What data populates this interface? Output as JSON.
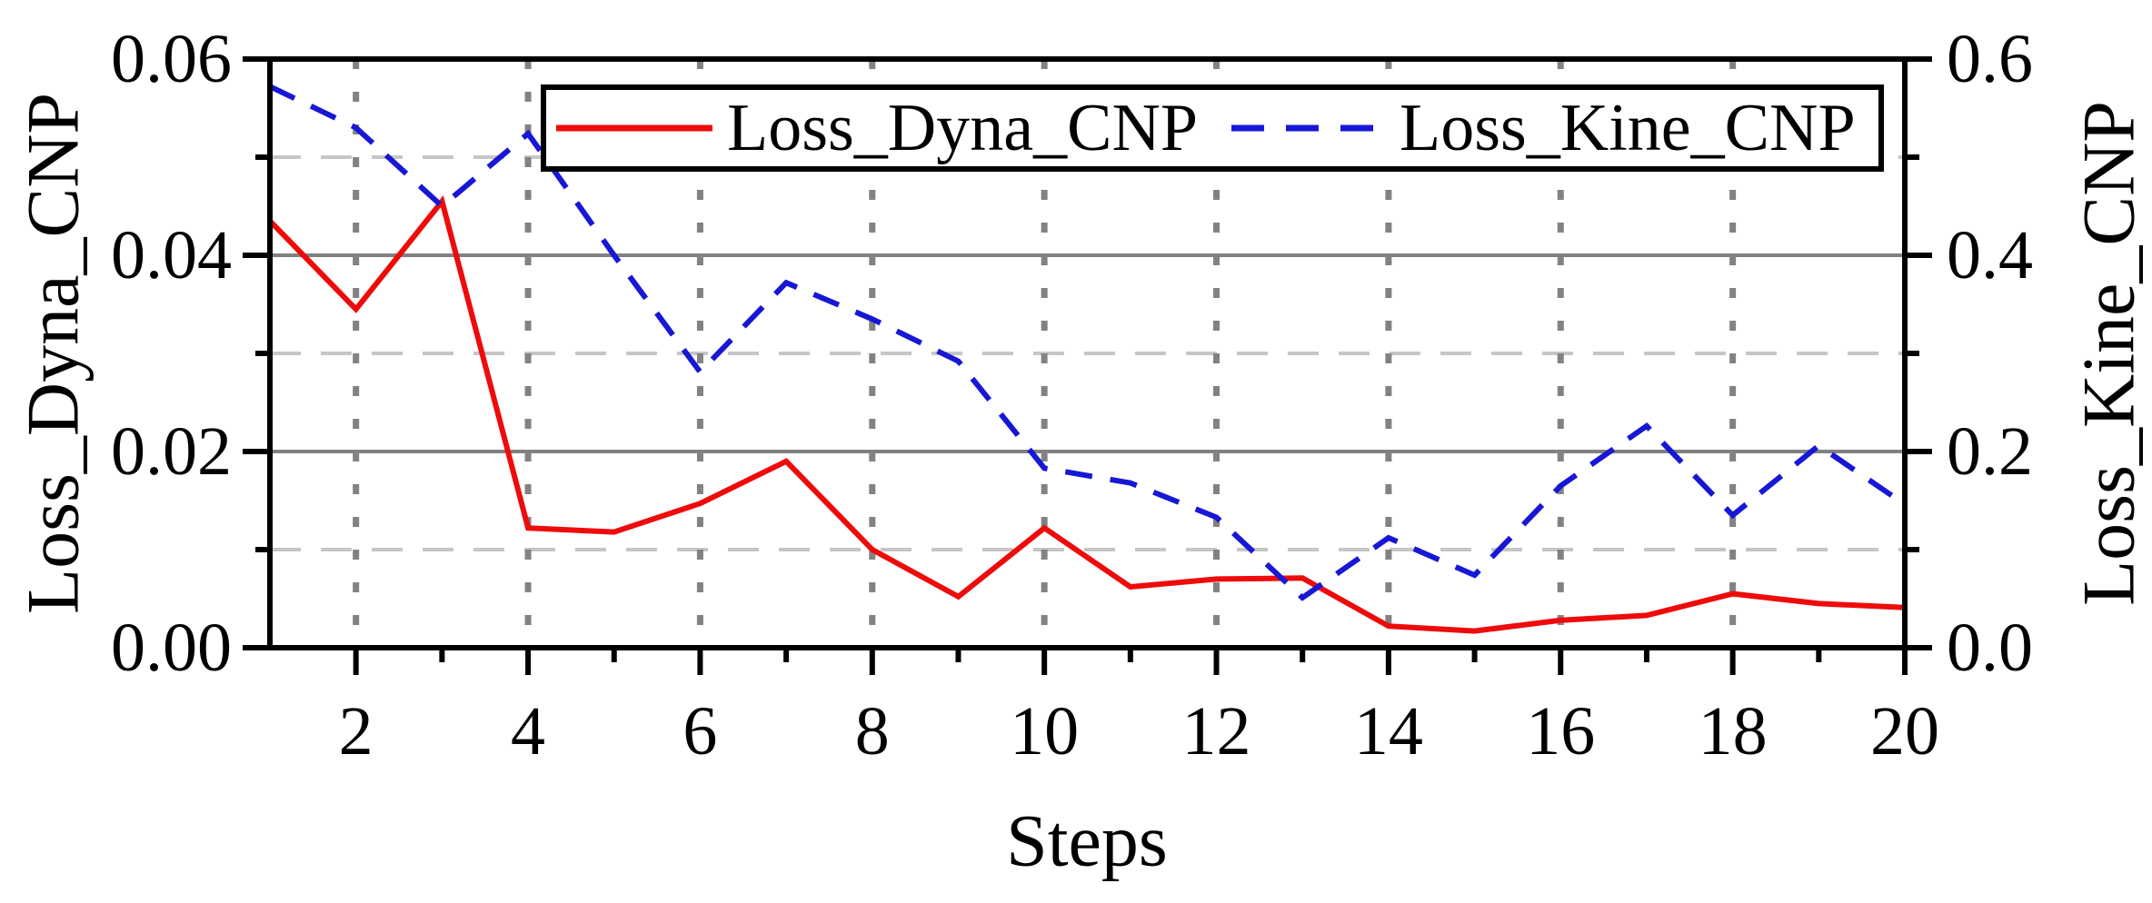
{
  "figure": {
    "background": "#ffffff"
  },
  "chart_data": {
    "type": "line",
    "title": "",
    "xlabel": "Steps",
    "ylabel_left": "Loss_Dyna_CNP",
    "ylabel_right": "Loss_Kine_CNP",
    "x": [
      1,
      2,
      3,
      4,
      5,
      6,
      7,
      8,
      9,
      10,
      11,
      12,
      13,
      14,
      15,
      16,
      17,
      18,
      19,
      20
    ],
    "x_range": [
      1,
      20
    ],
    "ylim_left": [
      0,
      0.06
    ],
    "ylim_right": [
      0,
      0.6
    ],
    "grid_on": true,
    "series": [
      {
        "name": "Loss_Dyna_CNP",
        "axis": "left",
        "color": "#ee0b0b",
        "style": "solid",
        "values": [
          0.0435,
          0.0345,
          0.0455,
          0.0122,
          0.0118,
          0.0147,
          0.019,
          0.01,
          0.0052,
          0.0122,
          0.0062,
          0.007,
          0.0071,
          0.0022,
          0.0017,
          0.0028,
          0.0033,
          0.0055,
          0.0045,
          0.0041
        ]
      },
      {
        "name": "Loss_Kine_CNP",
        "axis": "right",
        "color": "#1717d6",
        "style": "dashed",
        "values": [
          0.572,
          0.53,
          0.45,
          0.524,
          0.4,
          0.281,
          0.372,
          0.335,
          0.292,
          0.183,
          0.168,
          0.133,
          0.051,
          0.112,
          0.074,
          0.165,
          0.226,
          0.135,
          0.206,
          0.146
        ]
      }
    ],
    "x_major_ticks": [
      2,
      4,
      6,
      8,
      10,
      12,
      14,
      16,
      18,
      20
    ],
    "x_major_labels": [
      "2",
      "4",
      "6",
      "8",
      "10",
      "12",
      "14",
      "16",
      "18",
      "20"
    ],
    "x_minor_ticks": [
      3,
      5,
      7,
      9,
      11,
      13,
      15,
      17,
      19
    ],
    "left_major_ticks": [
      0,
      0.02,
      0.04,
      0.06
    ],
    "left_major_labels": [
      "0.00",
      "0.02",
      "0.04",
      "0.06"
    ],
    "left_minor_ticks": [
      0.01,
      0.03,
      0.05
    ],
    "right_major_ticks": [
      0,
      0.2,
      0.4,
      0.6
    ],
    "right_major_labels": [
      "0.0",
      "0.2",
      "0.4",
      "0.6"
    ],
    "right_minor_ticks": [
      0.1,
      0.3,
      0.5
    ],
    "grid": {
      "h_solid_left_values": [
        0.02,
        0.04
      ],
      "h_dashed_left_values": [
        0.01,
        0.03,
        0.05
      ],
      "v_dotted_steps": [
        2,
        4,
        6,
        8,
        10,
        12,
        14,
        16,
        18
      ]
    },
    "legend": {
      "position": "top-center",
      "entries": [
        {
          "label": "Loss_Dyna_CNP",
          "line": "solid-red"
        },
        {
          "label": "Loss_Kine_CNP",
          "line": "dashed-blue"
        }
      ]
    },
    "colors": {
      "axis": "#000000",
      "grid_solid": "#808080",
      "grid_dashed": "#c6c6c6",
      "grid_dotted": "#828282",
      "text": "#000000",
      "legend_background": "#ffffff"
    }
  }
}
